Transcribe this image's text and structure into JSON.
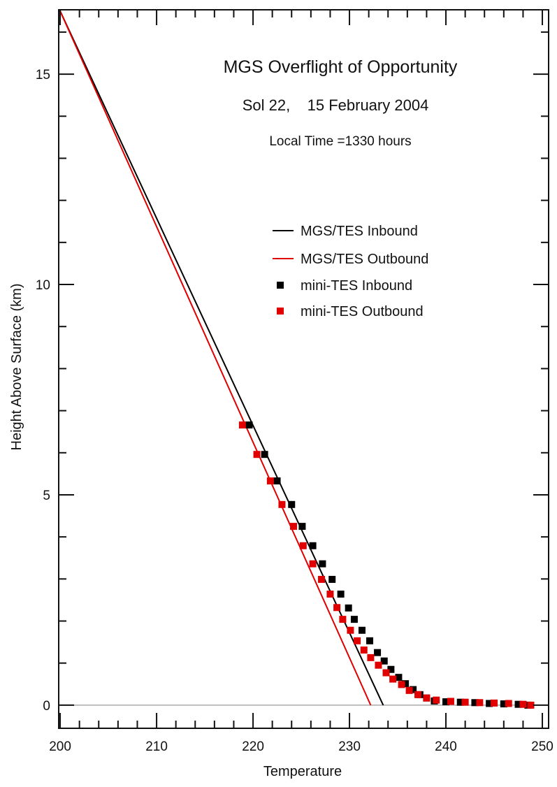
{
  "chart_data": {
    "type": "line",
    "title": "MGS Overflight of Opportunity",
    "subtitle": "Sol 22,    15 February 2004",
    "annotation": "Local Time =1330 hours",
    "xlabel": "Temperature",
    "ylabel": "Height Above Surface (km)",
    "xlim": [
      199.85,
      250.65
    ],
    "ylim": [
      -0.55,
      16.53
    ],
    "xticks": [
      200,
      210,
      220,
      230,
      240,
      250
    ],
    "xtick_labels": [
      "200",
      "210",
      "220",
      "230",
      "240",
      "250"
    ],
    "yticks": [
      0,
      5,
      10,
      15
    ],
    "ytick_labels": [
      "0",
      "5",
      "10",
      "15"
    ],
    "x_minor_step": 2,
    "y_minor_step": 1,
    "grid": false,
    "zero_line": {
      "y": 0,
      "color": "#aaaaaa"
    },
    "legend_placement": "right",
    "series": [
      {
        "name": "MGS/TES Inbound",
        "kind": "line",
        "color": "#000000",
        "x": [
          200.0,
          233.5
        ],
        "y": [
          16.5,
          0.0
        ]
      },
      {
        "name": "MGS/TES Outbound",
        "kind": "line",
        "color": "#e00000",
        "x": [
          200.0,
          232.2
        ],
        "y": [
          16.5,
          0.0
        ]
      },
      {
        "name": "mini-TES Inbound",
        "kind": "scatter",
        "color": "#000000",
        "x": [
          219.6,
          221.2,
          222.5,
          224.0,
          225.1,
          226.2,
          227.2,
          228.2,
          229.1,
          229.9,
          230.5,
          231.3,
          232.1,
          232.9,
          233.6,
          234.3,
          235.1,
          235.8,
          236.6,
          237.3,
          238.0,
          238.8,
          240.0,
          241.5,
          243.0,
          244.5,
          246.0,
          247.5,
          248.5
        ],
        "y": [
          6.66,
          5.96,
          5.33,
          4.77,
          4.25,
          3.79,
          3.36,
          2.99,
          2.64,
          2.31,
          2.04,
          1.78,
          1.53,
          1.25,
          1.05,
          0.85,
          0.66,
          0.51,
          0.37,
          0.25,
          0.17,
          0.1,
          0.08,
          0.07,
          0.06,
          0.04,
          0.03,
          0.02,
          0.0
        ]
      },
      {
        "name": "mini-TES Outbound",
        "kind": "scatter",
        "color": "#e00000",
        "x": [
          218.9,
          220.4,
          221.8,
          223.0,
          224.2,
          225.2,
          226.2,
          227.1,
          228.0,
          228.7,
          229.3,
          230.1,
          230.8,
          231.5,
          232.2,
          233.0,
          233.8,
          234.5,
          235.4,
          236.2,
          237.1,
          238.0,
          239.0,
          240.5,
          242.0,
          243.5,
          245.0,
          246.5,
          248.0,
          248.8
        ],
        "y": [
          6.66,
          5.96,
          5.33,
          4.77,
          4.25,
          3.79,
          3.36,
          2.99,
          2.64,
          2.32,
          2.04,
          1.78,
          1.53,
          1.31,
          1.13,
          0.95,
          0.77,
          0.62,
          0.49,
          0.35,
          0.25,
          0.17,
          0.12,
          0.09,
          0.07,
          0.06,
          0.05,
          0.04,
          0.02,
          0.0
        ]
      }
    ]
  }
}
